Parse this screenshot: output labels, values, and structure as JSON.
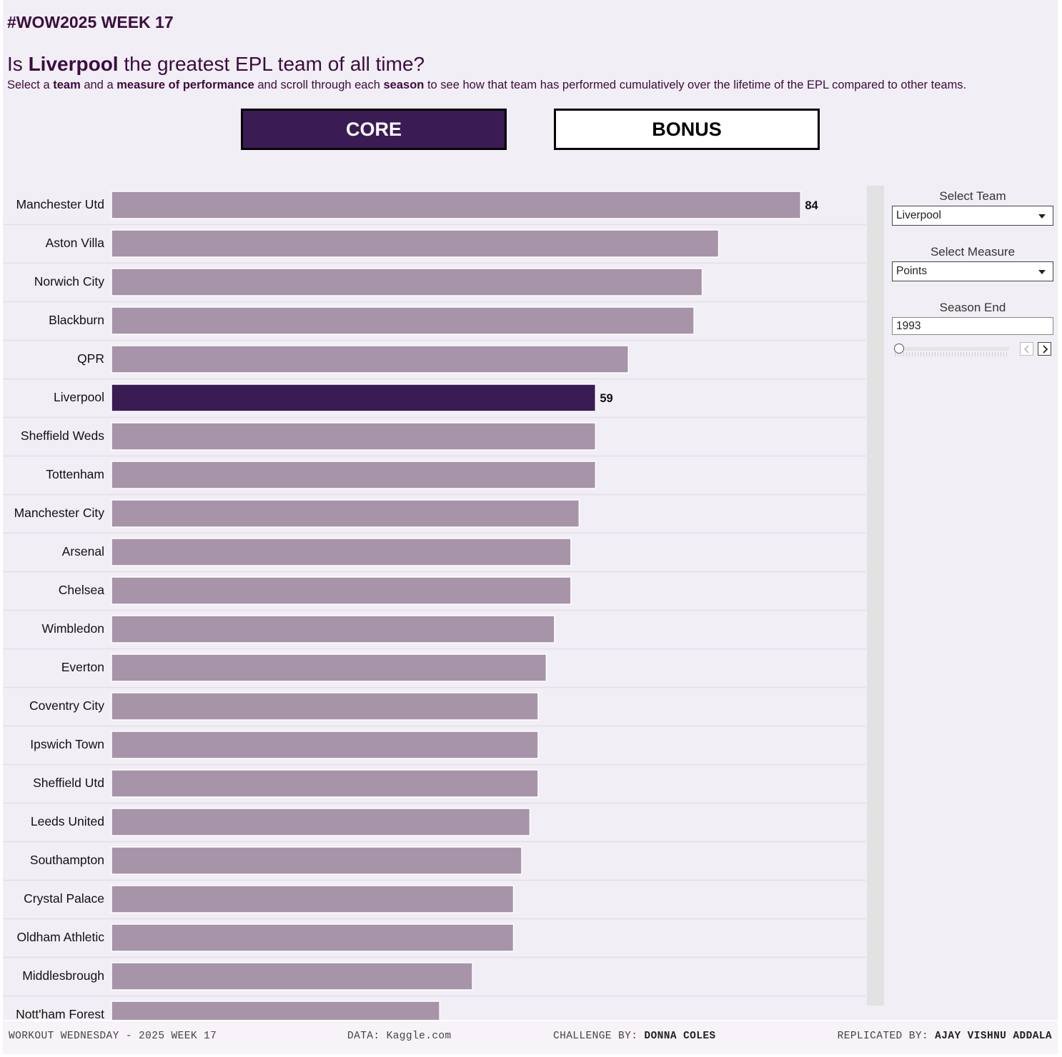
{
  "header": {
    "tag": "#WOW2025 WEEK 17",
    "headline_prefix": "Is ",
    "headline_team": "Liverpool",
    "headline_suffix": " the greatest EPL team of all time?",
    "sub_1": "Select a ",
    "sub_team": "team",
    "sub_2": " and a ",
    "sub_measure": "measure of performance",
    "sub_3": " and scroll through each ",
    "sub_season": "season",
    "sub_4": " to see how that team has performed cumulatively over the lifetime of the EPL compared to other teams."
  },
  "tabs": {
    "core": "CORE",
    "bonus": "BONUS"
  },
  "filters": {
    "team_title": "Select Team",
    "team_value": "Liverpool",
    "measure_title": "Select Measure",
    "measure_value": "Points",
    "season_title": "Season End",
    "season_value": "1993"
  },
  "chart_data": {
    "type": "bar",
    "orientation": "horizontal",
    "highlight": "Liverpool",
    "labelled": [
      "Manchester Utd",
      "Liverpool"
    ],
    "categories": [
      "Manchester Utd",
      "Aston Villa",
      "Norwich City",
      "Blackburn",
      "QPR",
      "Liverpool",
      "Sheffield Weds",
      "Tottenham",
      "Manchester City",
      "Arsenal",
      "Chelsea",
      "Wimbledon",
      "Everton",
      "Coventry City",
      "Ipswich Town",
      "Sheffield Utd",
      "Leeds United",
      "Southampton",
      "Crystal Palace",
      "Oldham Athletic",
      "Middlesbrough",
      "Nott'ham Forest"
    ],
    "values": [
      84,
      74,
      72,
      71,
      63,
      59,
      59,
      59,
      57,
      56,
      56,
      54,
      53,
      52,
      52,
      52,
      51,
      50,
      49,
      49,
      44,
      40
    ],
    "colors": {
      "bar": "#a794a9",
      "highlight": "#3b1b54",
      "separator": "#e3dee8"
    }
  },
  "footer": {
    "workout": "WORKOUT WEDNESDAY - 2025 WEEK 17",
    "data_label": "DATA: ",
    "data_value": "Kaggle.com",
    "challenge_label": "CHALLENGE BY: ",
    "challenge_value": "DONNA COLES",
    "replicated_label": "REPLICATED BY: ",
    "replicated_value": "AJAY VISHNU ADDALA"
  }
}
